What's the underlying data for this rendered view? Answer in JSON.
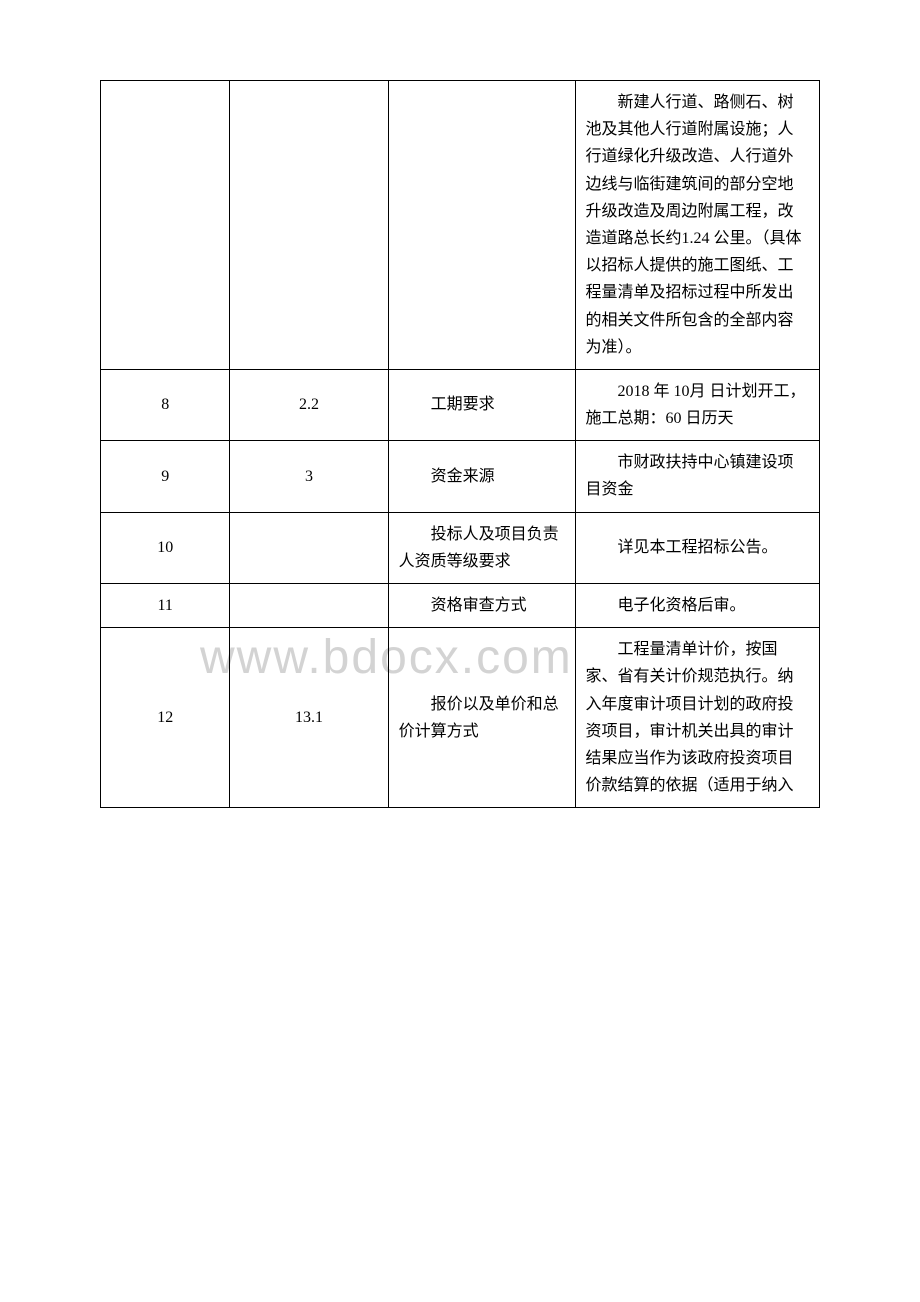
{
  "watermark": "www.bdocx.com",
  "table": {
    "columns": [
      {
        "width": "18%",
        "align": "center"
      },
      {
        "width": "22%",
        "align": "center"
      },
      {
        "width": "26%",
        "align": "left",
        "indent": "2em"
      },
      {
        "width": "34%",
        "align": "left",
        "indent": "2em"
      }
    ],
    "border_color": "#000000",
    "text_color": "#000000",
    "font_size": 16,
    "line_height": 1.7,
    "rows": [
      {
        "c1": "",
        "c2": "",
        "c3": "",
        "c4": "新建人行道、路侧石、树池及其他人行道附属设施；人行道绿化升级改造、人行道外边线与临街建筑间的部分空地升级改造及周边附属工程，改造道路总长约1.24 公里。（具体以招标人提供的施工图纸、工程量清单及招标过程中所发出的相关文件所包含的全部内容为准）。"
      },
      {
        "c1": "8",
        "c2": "2.2",
        "c3": "工期要求",
        "c4": "2018 年 10月 日计划开工，施工总期：60 日历天"
      },
      {
        "c1": "9",
        "c2": "3",
        "c3": "资金来源",
        "c4": "市财政扶持中心镇建设项目资金"
      },
      {
        "c1": "10",
        "c2": "",
        "c3": "投标人及项目负责人资质等级要求",
        "c4": "详见本工程招标公告。"
      },
      {
        "c1": "11",
        "c2": "",
        "c3": "资格审查方式",
        "c4": "电子化资格后审。"
      },
      {
        "c1": "12",
        "c2": "13.1",
        "c3": "报价以及单价和总价计算方式",
        "c4": "工程量清单计价，按国家、省有关计价规范执行。纳入年度审计项目计划的政府投资项目，审计机关出具的审计结果应当作为该政府投资项目价款结算的依据（适用于纳入"
      }
    ]
  }
}
